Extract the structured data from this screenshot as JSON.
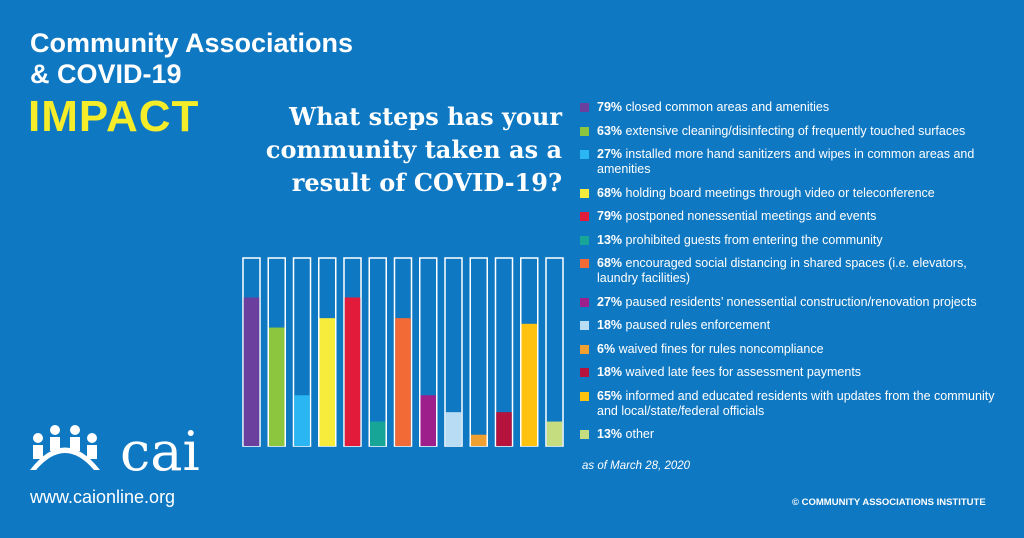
{
  "chart_data": {
    "type": "bar",
    "title_lines": [
      "Community Associations",
      "& COVID-19"
    ],
    "headline": "IMPACT",
    "question_lines": [
      "What steps has your",
      "community taken as a",
      "result of COVID-19?"
    ],
    "categories": [
      "closed common areas and amenities",
      "extensive cleaning/disinfecting of frequently touched surfaces",
      "installed more hand sanitizers and wipes in common areas and amenities",
      "holding board meetings through video or teleconference",
      "postponed nonessential meetings and events",
      "prohibited guests from entering the community",
      "encouraged social distancing in shared spaces (i.e. elevators, laundry facilities)",
      "paused residents’ nonessential construction/renovation projects",
      "paused rules enforcement",
      "waived fines for rules noncompliance",
      "waived late fees for assessment payments",
      "informed and educated residents with updates from the community and local/state/federal officials",
      "other"
    ],
    "values": [
      79,
      63,
      27,
      68,
      79,
      13,
      68,
      27,
      18,
      6,
      18,
      65,
      13
    ],
    "value_labels": [
      "79%",
      "63%",
      "27%",
      "68%",
      "79%",
      "13%",
      "68%",
      "27%",
      "18%",
      "6%",
      "18%",
      "65%",
      "13%"
    ],
    "colors": [
      "#6a3f9e",
      "#8cc63f",
      "#29b6f2",
      "#f7ec3b",
      "#e31b3b",
      "#17a598",
      "#f26a36",
      "#9c1f8c",
      "#b8dcf4",
      "#f0a030",
      "#b5123e",
      "#ffc20e",
      "#c5dd7e"
    ],
    "ylim": [
      0,
      100
    ],
    "note": "as of March 28, 2020",
    "logo_text": "cai",
    "url": "www.caionline.org",
    "copyright": "© COMMUNITY ASSOCIATIONS INSTITUTE"
  }
}
